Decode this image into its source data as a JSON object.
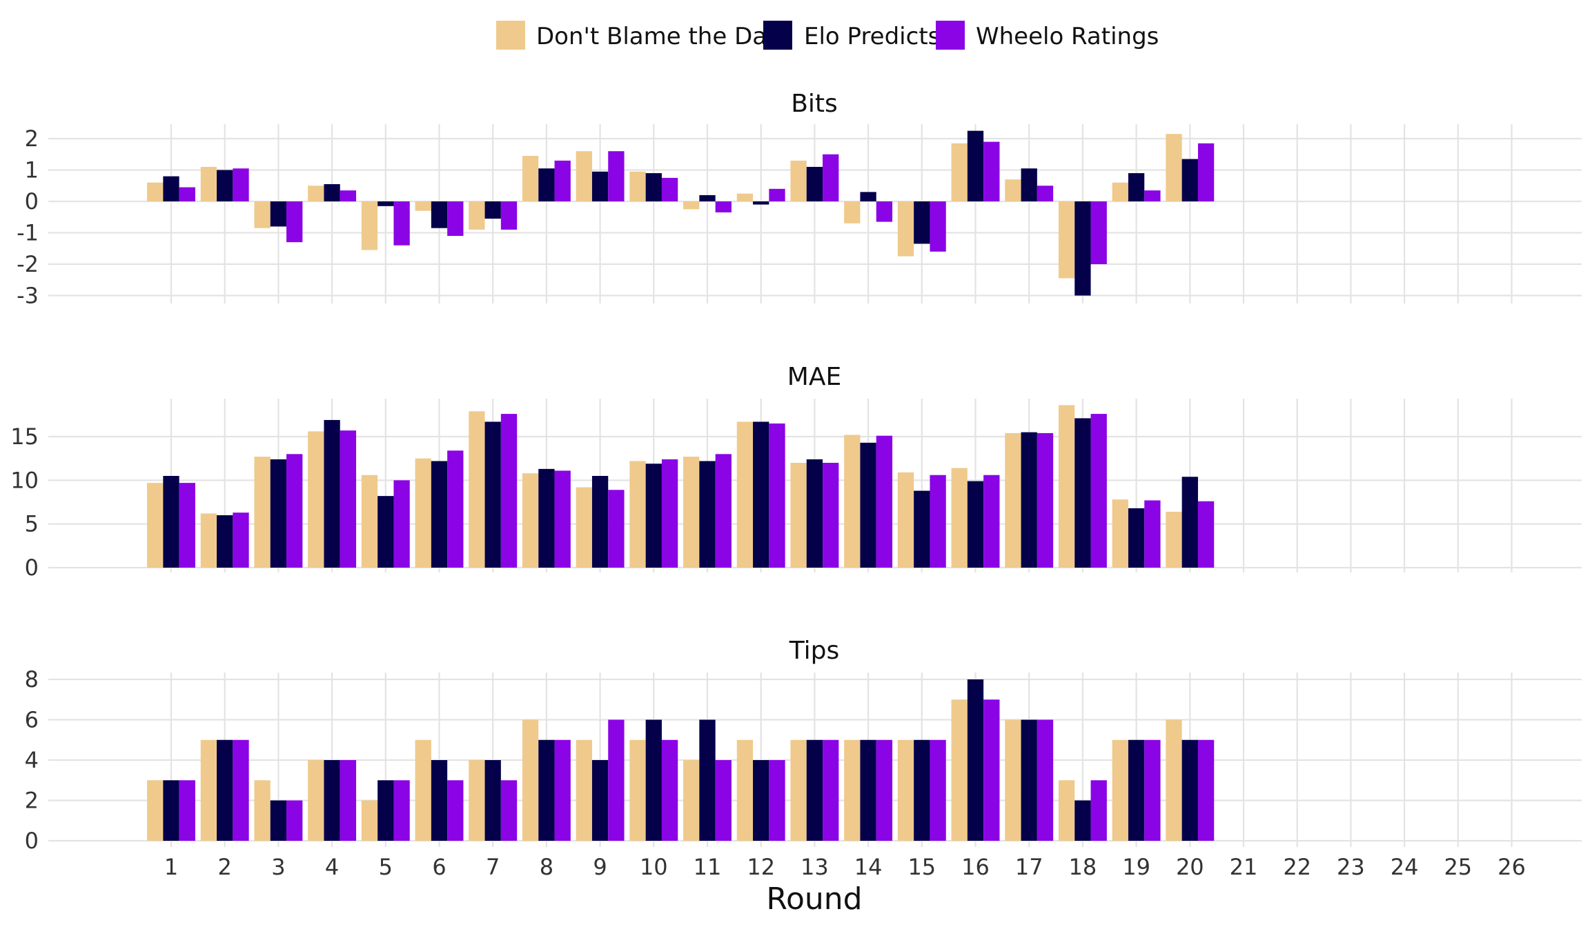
{
  "chart_data": {
    "type": "bar",
    "xlabel": "Round",
    "x_ticks": [
      "1",
      "2",
      "3",
      "4",
      "5",
      "6",
      "7",
      "8",
      "9",
      "10",
      "11",
      "12",
      "13",
      "14",
      "15",
      "16",
      "17",
      "18",
      "19",
      "20",
      "21",
      "22",
      "23",
      "24",
      "25",
      "26"
    ],
    "categories": [
      "1",
      "2",
      "3",
      "4",
      "5",
      "6",
      "7",
      "8",
      "9",
      "10",
      "11",
      "12",
      "13",
      "14",
      "15",
      "16",
      "17",
      "18",
      "19",
      "20"
    ],
    "legend_position": "top",
    "series_colors": [
      "#EFCA8C",
      "#04004A",
      "#8B04E6"
    ],
    "legend": [
      "Don't Blame the Data",
      "Elo Predicts",
      "Wheelo Ratings"
    ],
    "panels": [
      {
        "title": "Bits",
        "ylim": [
          -3.25,
          2.45
        ],
        "yticks": [
          2,
          1,
          0,
          -1,
          -2,
          -3
        ],
        "ytick_labels": [
          "2",
          "1",
          "0",
          "-1",
          "-2",
          "-3"
        ],
        "series": [
          {
            "name": "Don't Blame the Data",
            "values": [
              0.6,
              1.1,
              -0.85,
              0.5,
              -1.55,
              -0.3,
              -0.9,
              1.45,
              1.6,
              0.95,
              -0.25,
              0.25,
              1.3,
              -0.7,
              -1.75,
              1.85,
              0.7,
              -2.45,
              0.6,
              2.15
            ]
          },
          {
            "name": "Elo Predicts",
            "values": [
              0.8,
              1.0,
              -0.8,
              0.55,
              -0.15,
              -0.85,
              -0.55,
              1.05,
              0.95,
              0.9,
              0.2,
              -0.1,
              1.1,
              0.3,
              -1.35,
              2.25,
              1.05,
              -3.0,
              0.9,
              1.35
            ]
          },
          {
            "name": "Wheelo Ratings",
            "values": [
              0.45,
              1.05,
              -1.3,
              0.35,
              -1.4,
              -1.1,
              -0.9,
              1.3,
              1.6,
              0.75,
              -0.35,
              0.4,
              1.5,
              -0.65,
              -1.6,
              1.9,
              0.5,
              -2.0,
              0.35,
              1.85
            ]
          }
        ]
      },
      {
        "title": "MAE",
        "ylim": [
          0,
          19.5
        ],
        "yticks": [
          15,
          10,
          5,
          0
        ],
        "ytick_labels": [
          "15",
          "10",
          "5",
          "0"
        ],
        "series": [
          {
            "name": "Don't Blame the Data",
            "values": [
              9.7,
              6.2,
              12.7,
              15.6,
              10.6,
              12.5,
              17.9,
              10.8,
              9.2,
              12.2,
              12.7,
              16.7,
              12.0,
              15.2,
              10.9,
              11.4,
              15.4,
              18.6,
              7.8,
              6.4
            ]
          },
          {
            "name": "Elo Predicts",
            "values": [
              10.5,
              6.0,
              12.4,
              16.9,
              8.2,
              12.2,
              16.7,
              11.3,
              10.5,
              11.9,
              12.2,
              16.7,
              12.4,
              14.3,
              8.8,
              9.9,
              15.5,
              17.1,
              6.8,
              10.4
            ]
          },
          {
            "name": "Wheelo Ratings",
            "values": [
              9.7,
              6.3,
              13.0,
              15.7,
              10.0,
              13.4,
              17.6,
              11.1,
              8.9,
              12.4,
              13.0,
              16.5,
              12.0,
              15.1,
              10.6,
              10.6,
              15.4,
              17.6,
              7.7,
              7.6
            ]
          }
        ]
      },
      {
        "title": "Tips",
        "ylim": [
          0,
          8.1
        ],
        "yticks": [
          8,
          6,
          4,
          2,
          0
        ],
        "ytick_labels": [
          "8",
          "6",
          "4",
          "2",
          "0"
        ],
        "series": [
          {
            "name": "Don't Blame the Data",
            "values": [
              3,
              5,
              3,
              4,
              2,
              5,
              4,
              6,
              5,
              5,
              4,
              5,
              5,
              5,
              5,
              7,
              6,
              3,
              5,
              6
            ]
          },
          {
            "name": "Elo Predicts",
            "values": [
              3,
              5,
              2,
              4,
              3,
              4,
              4,
              5,
              4,
              6,
              6,
              4,
              5,
              5,
              5,
              8,
              6,
              2,
              5,
              5
            ]
          },
          {
            "name": "Wheelo Ratings",
            "values": [
              3,
              5,
              2,
              4,
              3,
              3,
              3,
              5,
              6,
              5,
              4,
              4,
              5,
              5,
              5,
              7,
              6,
              3,
              5,
              5
            ]
          }
        ]
      }
    ]
  }
}
